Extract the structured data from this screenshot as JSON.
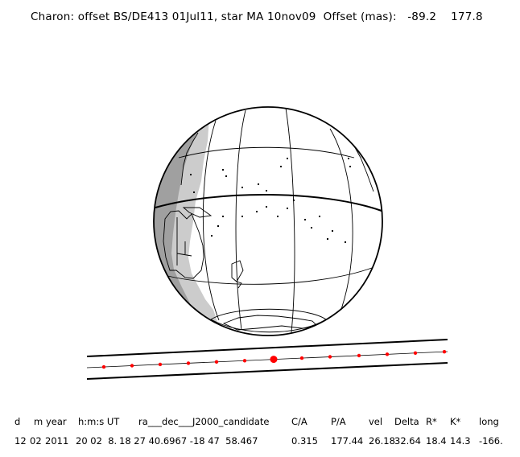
{
  "title": "Charon: offset BS/DE413 01Jul11, star MA 10nov09  Offset (mas):   -89.2    177.8",
  "colors": {
    "night": "#a0a0a0",
    "twilight": "#cccccc",
    "outline": "#000000",
    "track_points": "#ff0000"
  },
  "table": {
    "headers": [
      "d",
      "m",
      "year",
      "h:m:s UT",
      "ra___dec___J2000_candidate",
      "C/A",
      "P/A",
      "vel",
      "Delta",
      "R*",
      "K*",
      "long"
    ],
    "values": [
      "12",
      "02",
      "2011",
      "20 02  8.",
      "18 27 40.6967 -18 47  58.467",
      "0.315",
      "177.44",
      "26.18",
      "32.64",
      "18.4",
      "14.3",
      "-166."
    ]
  }
}
